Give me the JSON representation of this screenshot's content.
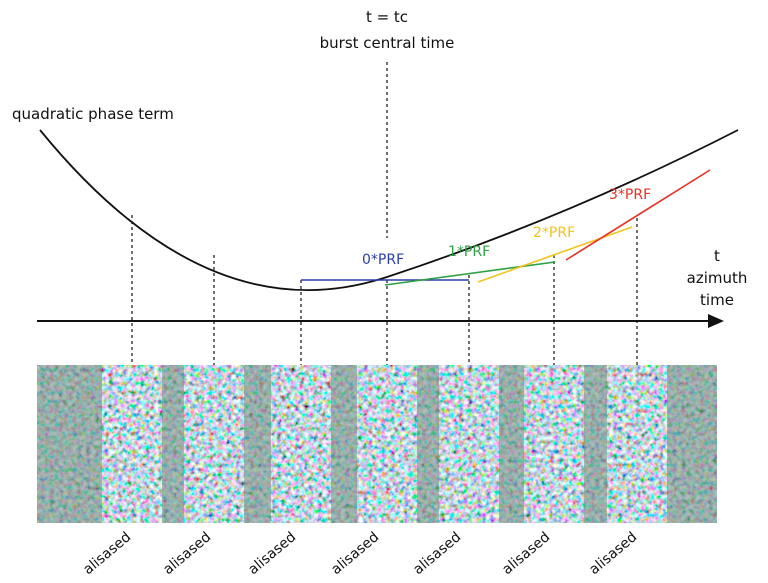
{
  "center_label_top": "t = tc",
  "center_label_bottom": "burst central time",
  "curve_label": "quadratic phase term",
  "axis_label_t": "t",
  "axis_label_azimuth": "azimuth",
  "axis_label_time": "time",
  "prf_labels": [
    {
      "text": "0*PRF",
      "color": "#2b3ea6"
    },
    {
      "text": "1*PRF",
      "color": "#2ea043"
    },
    {
      "text": "2*PRF",
      "color": "#f2c31b"
    },
    {
      "text": "3*PRF",
      "color": "#e53224"
    }
  ],
  "bottom_labels": [
    "alisased",
    "alisased",
    "alisased",
    "alisased",
    "alisased",
    "alisased",
    "alisased"
  ],
  "colors": {
    "line": "#111111",
    "panel_base": "#7a9486"
  }
}
